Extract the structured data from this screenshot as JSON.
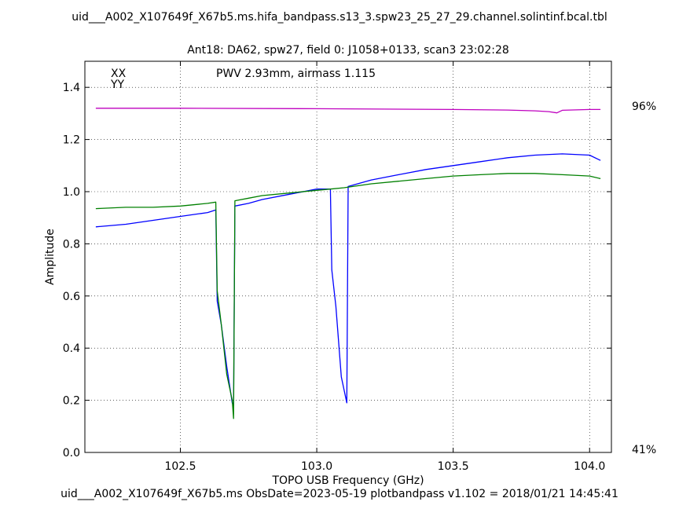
{
  "header": {
    "title": "uid___A002_X107649f_X67b5.ms.hifa_bandpass.s13_3.spw23_25_27_29.channel.solintinf.bcal.tbl",
    "subtitle": "Ant18: DA62,  spw27,  field 0: J1058+0133,  scan3  23:02:28"
  },
  "footer": {
    "text": "uid___A002_X107649f_X67b5.ms  ObsDate=2023-05-19   plotbandpass v1.102 = 2018/01/21 14:45:41"
  },
  "colors": {
    "xx": "#0000ff",
    "yy": "#008000",
    "pwv": "#bf00bf",
    "grid": "#000000"
  },
  "chart_data": {
    "type": "line",
    "xlabel": "TOPO USB Frequency (GHz)",
    "ylabel": "Amplitude",
    "xlim": [
      102.15,
      104.08
    ],
    "ylim": [
      0.0,
      1.5
    ],
    "x_ticks": [
      102.5,
      103.0,
      103.5,
      104.0
    ],
    "x_tick_labels": [
      "102.5",
      "103.0",
      "103.5",
      "104.0"
    ],
    "y_ticks": [
      0.0,
      0.2,
      0.4,
      0.6,
      0.8,
      1.0,
      1.2,
      1.4
    ],
    "y_tick_labels": [
      "0.0",
      "0.2",
      "0.4",
      "0.6",
      "0.8",
      "1.0",
      "1.2",
      "1.4"
    ],
    "grid": true,
    "legend": [
      "XX",
      "YY"
    ],
    "annotation": "PWV 2.93mm, airmass 1.115",
    "right_axis_labels": {
      "top": "96%",
      "bottom": "41%"
    },
    "series": [
      {
        "name": "XX",
        "x": [
          102.19,
          102.3,
          102.4,
          102.5,
          102.6,
          102.63,
          102.635,
          102.65,
          102.67,
          102.69,
          102.695,
          102.7,
          102.75,
          102.8,
          102.9,
          103.0,
          103.05,
          103.055,
          103.07,
          103.09,
          103.11,
          103.115,
          103.2,
          103.3,
          103.4,
          103.5,
          103.6,
          103.7,
          103.8,
          103.9,
          104.0,
          104.04
        ],
        "y": [
          0.865,
          0.875,
          0.89,
          0.905,
          0.92,
          0.93,
          0.58,
          0.49,
          0.33,
          0.19,
          0.18,
          0.945,
          0.955,
          0.97,
          0.99,
          1.01,
          1.01,
          0.7,
          0.56,
          0.29,
          0.19,
          1.02,
          1.045,
          1.065,
          1.085,
          1.1,
          1.115,
          1.13,
          1.14,
          1.145,
          1.14,
          1.12
        ]
      },
      {
        "name": "YY",
        "x": [
          102.19,
          102.3,
          102.4,
          102.5,
          102.6,
          102.63,
          102.635,
          102.65,
          102.67,
          102.69,
          102.695,
          102.7,
          102.75,
          102.8,
          102.9,
          103.0,
          103.05,
          103.1,
          103.2,
          103.3,
          103.4,
          103.5,
          103.6,
          103.7,
          103.8,
          103.9,
          104.0,
          104.04
        ],
        "y": [
          0.935,
          0.94,
          0.94,
          0.945,
          0.955,
          0.96,
          0.62,
          0.49,
          0.3,
          0.2,
          0.13,
          0.965,
          0.975,
          0.985,
          0.995,
          1.005,
          1.01,
          1.015,
          1.03,
          1.04,
          1.05,
          1.06,
          1.065,
          1.07,
          1.07,
          1.065,
          1.06,
          1.05
        ]
      },
      {
        "name": "PWV transmission",
        "x": [
          102.19,
          102.5,
          103.0,
          103.5,
          103.7,
          103.8,
          103.85,
          103.88,
          103.9,
          104.0,
          104.04
        ],
        "y": [
          1.32,
          1.32,
          1.318,
          1.315,
          1.313,
          1.31,
          1.307,
          1.302,
          1.312,
          1.315,
          1.315
        ]
      }
    ]
  }
}
